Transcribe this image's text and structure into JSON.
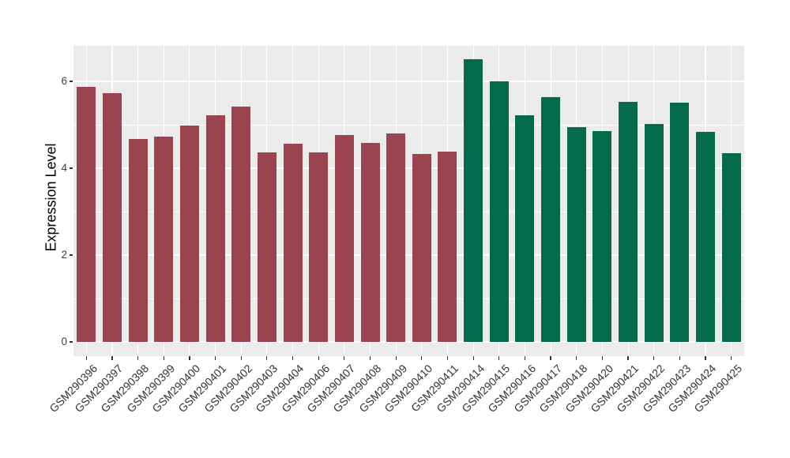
{
  "chart_data": {
    "type": "bar",
    "title": "",
    "xlabel": "",
    "ylabel": "Expression Level",
    "ylim": [
      0,
      6.8
    ],
    "yticks": [
      0,
      2,
      4,
      6
    ],
    "yticks_minor": [
      1,
      3,
      5
    ],
    "grid": "white major and minor horizontal gridlines plus white vertical gridlines at each bar center, drawn on light gray panel",
    "legend": "none",
    "categories": [
      "GSM290396",
      "GSM290397",
      "GSM290398",
      "GSM290399",
      "GSM290400",
      "GSM290401",
      "GSM290402",
      "GSM290403",
      "GSM290404",
      "GSM290406",
      "GSM290407",
      "GSM290408",
      "GSM290409",
      "GSM290410",
      "GSM290411",
      "GSM290414",
      "GSM290415",
      "GSM290416",
      "GSM290417",
      "GSM290418",
      "GSM290420",
      "GSM290421",
      "GSM290422",
      "GSM290423",
      "GSM290424",
      "GSM290425"
    ],
    "values": [
      5.87,
      5.73,
      4.67,
      4.72,
      4.99,
      5.22,
      5.41,
      4.37,
      4.57,
      4.37,
      4.77,
      4.58,
      4.8,
      4.33,
      4.39,
      6.51,
      6.0,
      5.22,
      5.63,
      4.94,
      4.85,
      5.52,
      5.01,
      5.51,
      4.84,
      4.35
    ],
    "groups": [
      0,
      0,
      0,
      0,
      0,
      0,
      0,
      0,
      0,
      0,
      0,
      0,
      0,
      0,
      0,
      1,
      1,
      1,
      1,
      1,
      1,
      1,
      1,
      1,
      1,
      1
    ],
    "group_colors": [
      "#9C4350",
      "#046A4C"
    ],
    "colors": {
      "figure_bg": "#FFFFFF",
      "panel_bg": "#EBEBEB",
      "grid": "#FFFFFF",
      "tick": "#333333",
      "axis_text": "#404040",
      "axis_title": "#000000"
    }
  }
}
